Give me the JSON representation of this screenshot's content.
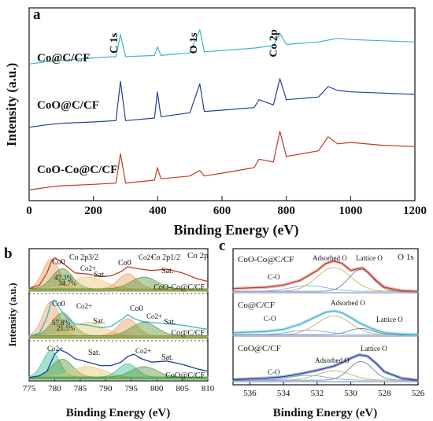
{
  "figure": {
    "panels": {
      "a": "a",
      "b": "b",
      "c": "c"
    }
  },
  "chart_data": [
    {
      "id": "a",
      "type": "line",
      "xlabel": "Binding Energy (eV)",
      "ylabel": "Intensity (a.u.)",
      "xlim": [
        0,
        1200
      ],
      "xticks": [
        "0",
        "200",
        "400",
        "600",
        "800",
        "1000",
        "1200"
      ],
      "peak_labels": [
        {
          "text": "C 1s",
          "x": 284
        },
        {
          "text": "O 1s",
          "x": 531
        },
        {
          "text": "Co 2p",
          "x": 780
        }
      ],
      "series": [
        {
          "name": "Co@C/CF",
          "color": "#3bb5c8",
          "x": [
            0,
            60,
            100,
            200,
            270,
            284,
            300,
            390,
            399,
            410,
            500,
            531,
            545,
            600,
            700,
            760,
            780,
            800,
            900,
            960,
            1000,
            1100,
            1200
          ],
          "y": [
            12,
            14,
            15,
            17,
            18,
            36,
            18,
            19,
            26,
            19,
            21,
            40,
            22,
            23,
            25,
            27,
            37,
            28,
            30,
            33,
            32,
            31,
            30
          ]
        },
        {
          "name": "CoO@C/CF",
          "color": "#1f3e97",
          "x": [
            0,
            60,
            100,
            200,
            270,
            284,
            300,
            390,
            399,
            410,
            500,
            531,
            545,
            600,
            700,
            715,
            760,
            780,
            800,
            900,
            930,
            960,
            1000,
            1100,
            1200
          ],
          "y": [
            5,
            7,
            8,
            9,
            10,
            40,
            10,
            12,
            32,
            13,
            16,
            38,
            17,
            18,
            20,
            26,
            22,
            42,
            26,
            28,
            36,
            33,
            32,
            31,
            30
          ]
        },
        {
          "name": "CoO-Co@C/CF",
          "color": "#c0392b",
          "x": [
            0,
            60,
            100,
            200,
            270,
            284,
            300,
            390,
            399,
            410,
            500,
            531,
            545,
            600,
            700,
            715,
            760,
            780,
            800,
            900,
            930,
            960,
            1000,
            1100,
            1200
          ],
          "y": [
            2,
            4,
            5,
            6,
            7,
            28,
            7,
            9,
            18,
            10,
            12,
            16,
            12,
            14,
            18,
            24,
            22,
            44,
            26,
            30,
            40,
            35,
            36,
            34,
            33
          ]
        }
      ]
    },
    {
      "id": "b",
      "type": "line",
      "xlabel": "Binding Energy (eV)",
      "ylabel": "Intensity (a.u.)",
      "xlim": [
        775,
        810
      ],
      "xticks": [
        "775",
        "780",
        "785",
        "790",
        "795",
        "800",
        "805",
        "810"
      ],
      "corner_label": "Co 2p",
      "annotations": [
        "Co 2p3/2",
        "Co 2p1/2",
        "Co0",
        "Co2+",
        "Sat.",
        "47.3%",
        "34.7%",
        "57.8%",
        "21.5%"
      ],
      "series": [
        {
          "name": "CoO-Co@C/CF",
          "color": "#c0392b",
          "x": [
            775,
            777,
            778.5,
            779.3,
            780,
            781,
            782.5,
            784,
            786.5,
            789,
            791,
            793,
            794.3,
            795.5,
            797,
            799,
            802,
            805,
            808,
            810
          ],
          "y": [
            4,
            10,
            30,
            48,
            55,
            50,
            40,
            30,
            28,
            24,
            25,
            32,
            40,
            38,
            36,
            34,
            36,
            30,
            20,
            16
          ]
        },
        {
          "name": "Co@C/CF",
          "color": "#3bb5c8",
          "x": [
            775,
            777,
            778.5,
            779.3,
            780,
            781,
            782.5,
            784,
            786.5,
            789,
            791,
            793,
            794.3,
            795.5,
            797,
            799,
            802,
            805,
            808,
            810
          ],
          "y": [
            3,
            8,
            32,
            55,
            58,
            45,
            30,
            22,
            20,
            16,
            18,
            28,
            36,
            30,
            26,
            24,
            22,
            20,
            16,
            14
          ]
        },
        {
          "name": "CoO@C/CF",
          "color": "#1f3e97",
          "x": [
            775,
            777,
            778.5,
            779.3,
            780,
            781,
            782.5,
            784,
            786.5,
            789,
            791,
            793,
            794.3,
            795.5,
            797,
            799,
            802,
            805,
            808,
            810
          ],
          "y": [
            3,
            6,
            14,
            30,
            44,
            52,
            46,
            36,
            30,
            24,
            24,
            30,
            40,
            44,
            36,
            30,
            32,
            26,
            18,
            14
          ]
        }
      ]
    },
    {
      "id": "c",
      "type": "line",
      "xlabel": "Binding Energy (eV)",
      "ylabel": "",
      "xlim": [
        537,
        526
      ],
      "xticks": [
        "536",
        "534",
        "532",
        "530",
        "528",
        "526"
      ],
      "corner_label": "O 1s",
      "annotations": [
        "Adsorbed O",
        "Lattice O",
        "C-O"
      ],
      "series": [
        {
          "name": "CoO-Co@C/CF",
          "color": "#c0392b",
          "x": [
            537,
            535,
            534,
            533,
            532,
            531.5,
            531,
            530.5,
            530,
            529.7,
            529.3,
            529,
            528.5,
            528,
            527,
            526
          ],
          "y": [
            6,
            8,
            11,
            18,
            32,
            42,
            46,
            42,
            32,
            34,
            36,
            30,
            18,
            8,
            3,
            2
          ]
        },
        {
          "name": "Co@C/CF",
          "color": "#3bb5c8",
          "x": [
            537,
            535,
            534,
            533,
            532,
            531.5,
            531,
            530.5,
            530,
            529.5,
            529,
            528.5,
            528,
            527,
            526
          ],
          "y": [
            5,
            7,
            10,
            18,
            30,
            36,
            38,
            35,
            28,
            20,
            14,
            9,
            5,
            3,
            2
          ]
        },
        {
          "name": "CoO@C/CF",
          "color": "#1f3e97",
          "x": [
            537,
            535,
            534,
            533,
            532,
            531,
            530.5,
            530,
            529.5,
            529,
            528.5,
            528,
            527,
            526
          ],
          "y": [
            3,
            5,
            7,
            11,
            16,
            22,
            27,
            33,
            38,
            36,
            26,
            14,
            5,
            2
          ]
        }
      ]
    }
  ]
}
